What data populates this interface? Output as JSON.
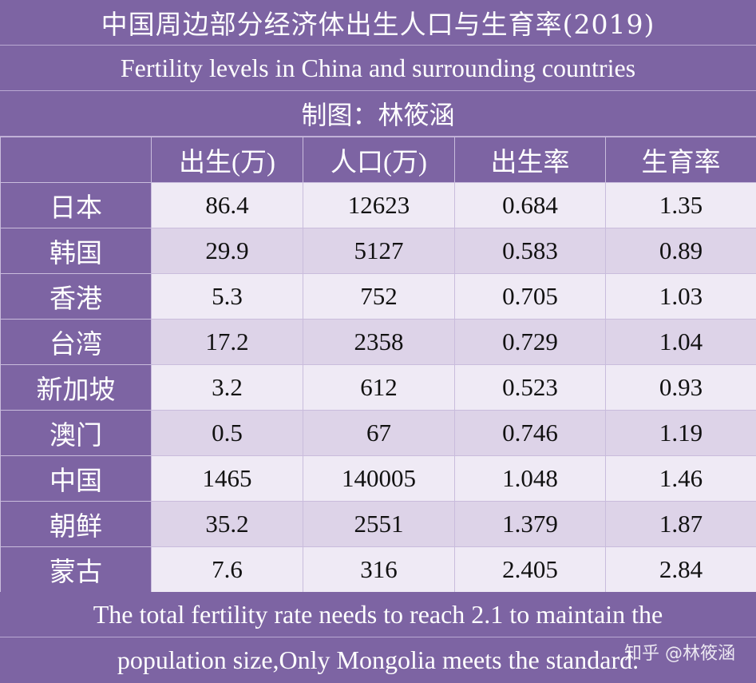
{
  "header": {
    "title_cn": "中国周边部分经济体出生人口与生育率(2019)",
    "title_en": "Fertility levels in China and surrounding countries",
    "credit": "制图：林筱涵"
  },
  "table": {
    "columns": [
      "出生(万)",
      "人口(万)",
      "出生率",
      "生育率"
    ],
    "rows": [
      {
        "label": "日本",
        "values": [
          "86.4",
          "12623",
          "0.684",
          "1.35"
        ]
      },
      {
        "label": "韩国",
        "values": [
          "29.9",
          "5127",
          "0.583",
          "0.89"
        ]
      },
      {
        "label": "香港",
        "values": [
          "5.3",
          "752",
          "0.705",
          "1.03"
        ]
      },
      {
        "label": "台湾",
        "values": [
          "17.2",
          "2358",
          "0.729",
          "1.04"
        ]
      },
      {
        "label": "新加坡",
        "values": [
          "3.2",
          "612",
          "0.523",
          "0.93"
        ]
      },
      {
        "label": "澳门",
        "values": [
          "0.5",
          "67",
          "0.746",
          "1.19"
        ]
      },
      {
        "label": "中国",
        "values": [
          "1465",
          "140005",
          "1.048",
          "1.46"
        ]
      },
      {
        "label": "朝鲜",
        "values": [
          "35.2",
          "2551",
          "1.379",
          "1.87"
        ]
      },
      {
        "label": "蒙古",
        "values": [
          "7.6",
          "316",
          "2.405",
          "2.84"
        ]
      }
    ]
  },
  "footer": {
    "line1": "The total fertility rate needs to reach 2.1 to maintain the",
    "line2": "population size,Only Mongolia meets the standard."
  },
  "watermark": "知乎 @林筱涵",
  "colors": {
    "header_purple": "#7d64a3",
    "row_light": "#efeaf5",
    "row_dark": "#ddd3e8",
    "grid_line": "#c9bcdc"
  }
}
